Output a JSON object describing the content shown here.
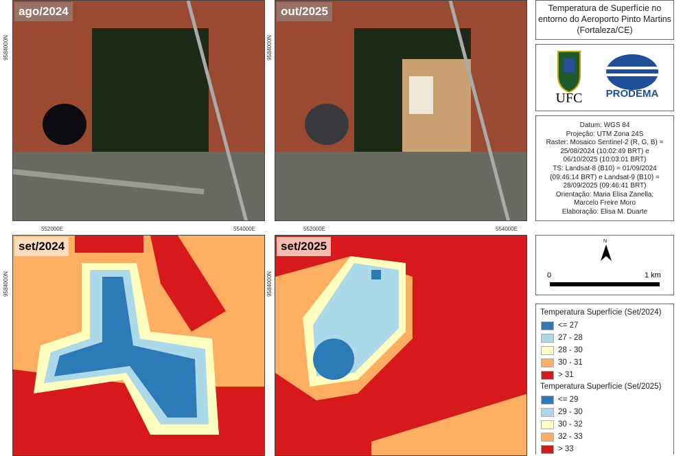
{
  "panels": [
    {
      "label": "ago/2024",
      "type": "satellite"
    },
    {
      "label": "out/2025",
      "type": "satellite"
    },
    {
      "label": "set/2024",
      "type": "temperature"
    },
    {
      "label": "set/2025",
      "type": "temperature"
    }
  ],
  "coords": {
    "e1": "552000E",
    "e2": "554000E",
    "n1": "9584000N"
  },
  "title": "Temperatura de Superfície no entorno do Aeroporto Pinto Martins (Fortaleza/CE)",
  "logos": {
    "ufc": "UFC",
    "prodema": "PRODEMA"
  },
  "info": [
    "Datum: WGS 84",
    "Projeção: UTM Zona 24S",
    "Raster: Mosaico Sentinel-2 (R, G, B) =",
    "25/08/2024 (10:02:49 BRT) e",
    "06/10/2025 (10:03:01 BRT)",
    "TS: Landsat-8 (B10) = 01/09/2024",
    "(09:46:14 BRT) e Landsat-9 (B10) =",
    "28/09/2025 (09:46:41 BRT)",
    "Orientação: Maria Elisa Zanella;",
    "Marcelo Freire Moro",
    "Elaboração: Elisa M. Duarte"
  ],
  "scale": {
    "north": "N",
    "start": "0",
    "end": "1 km"
  },
  "legend": [
    {
      "title": "Temperatura Superfície (Set/2024)",
      "classes": [
        {
          "label": "<= 27",
          "color": "#2c7bb6"
        },
        {
          "label": "27 - 28",
          "color": "#abd9e9"
        },
        {
          "label": "28 - 30",
          "color": "#ffffbf"
        },
        {
          "label": "30 - 31",
          "color": "#fdae61"
        },
        {
          "label": "> 31",
          "color": "#d7191c"
        }
      ]
    },
    {
      "title": "Temperatura Superfície (Set/2025)",
      "classes": [
        {
          "label": "<= 29",
          "color": "#2c7bb6"
        },
        {
          "label": "29 - 30",
          "color": "#abd9e9"
        },
        {
          "label": "30 - 32",
          "color": "#ffffbf"
        },
        {
          "label": "32 - 33",
          "color": "#fdae61"
        },
        {
          "label": "> 33",
          "color": "#d7191c"
        }
      ]
    }
  ]
}
